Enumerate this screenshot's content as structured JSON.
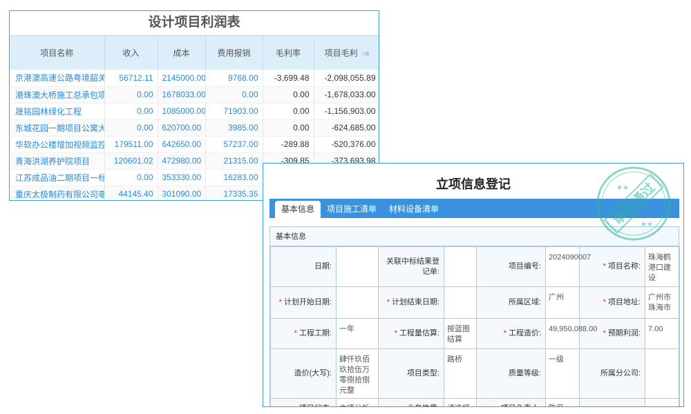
{
  "profit_table": {
    "title": "设计项目利润表",
    "columns": [
      "项目名称",
      "收入",
      "成本",
      "费用报销",
      "毛利率",
      "项目毛利"
    ],
    "sort_icon": "sort-icon",
    "rows": [
      [
        "京港澳高速公路粤境韶关至",
        "56712.11",
        "2145000.00",
        "9768.00",
        "-3,699.48",
        "-2,098,055.89"
      ],
      [
        "港珠澳大桥施工总承包项目",
        "0.00",
        "1678033.00",
        "0.00",
        "0.00",
        "-1,678,033.00"
      ],
      [
        "晟铭园林绿化工程",
        "0.00",
        "1085000.00",
        "71903.00",
        "0.00",
        "-1,156,903.00"
      ],
      [
        "东城花园一期项目公寓大堂",
        "0.00",
        "620700.00",
        "3985.00",
        "0.00",
        "-624,685.00"
      ],
      [
        "华软办公楼增加视频监控项",
        "179511.00",
        "642650.00",
        "57237.00",
        "-289.88",
        "-520,376.00"
      ],
      [
        "青海洪湖养护院项目",
        "120601.02",
        "472980.00",
        "21315.00",
        "-309.85",
        "-373,693.98"
      ],
      [
        "江苏成品油二期项目一标段",
        "0.00",
        "353330.00",
        "16283.00",
        "",
        ""
      ],
      [
        "重庆太极制药有限公司亳州",
        "44145.40",
        "301090.00",
        "17335.35",
        "",
        ""
      ]
    ]
  },
  "form": {
    "title": "立项信息登记",
    "tabs": [
      "基本信息",
      "项目施工清单",
      "材料设备清单"
    ],
    "section_title": "基本信息",
    "stamp_text": "审核通过",
    "rows": [
      [
        {
          "label": "日期:",
          "value": ""
        },
        {
          "label": "关联中标结果登记单:",
          "value": ""
        },
        {
          "label": "项目编号:",
          "value": "2024090007"
        },
        {
          "label": "项目名称:",
          "value": "珠海鹤港口建设",
          "req": true
        }
      ],
      [
        {
          "label": "计划开始日期:",
          "value": "",
          "req": true
        },
        {
          "label": "计划结束日期:",
          "value": "",
          "req": true
        },
        {
          "label": "所属区域:",
          "value": "广州"
        },
        {
          "label": "项目地址:",
          "value": "广州市珠海市",
          "req": true
        }
      ],
      [
        {
          "label": "工程工期:",
          "value": "一年",
          "req": true
        },
        {
          "label": "工程量估算:",
          "value": "按蓝图结算",
          "req": true
        },
        {
          "label": "工程造价:",
          "value": "49,950,088.00",
          "req": true
        },
        {
          "label": "预期利润:",
          "value": "7.00",
          "req": true
        }
      ],
      [
        {
          "label": "造价(大写):",
          "value": "肆仟玖佰玖拾伍万零捌拾捌元整"
        },
        {
          "label": "项目类型:",
          "value": "路桥"
        },
        {
          "label": "质量等级:",
          "value": "一级"
        },
        {
          "label": "所属分公司:",
          "value": ""
        }
      ],
      [
        {
          "label": "项目状态:",
          "value": "立项分析"
        },
        {
          "label": "业务性质:",
          "value": "请选择"
        },
        {
          "label": "项目负责人:",
          "value": "陈丹"
        },
        {
          "label": "",
          "value": ""
        }
      ]
    ]
  },
  "colors": {
    "accent": "#3a92dc",
    "link": "#2a8ad8",
    "required": "#e02020",
    "stamp": "#2fb59a"
  }
}
